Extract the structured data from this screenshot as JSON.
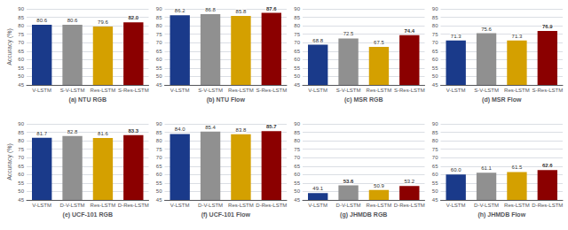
{
  "chart_data": [
    {
      "type": "bar",
      "title": "(a) NTU RGB",
      "ylabel": "Accuracy (%)",
      "categories": [
        "V-LSTM",
        "S-V-LSTM",
        "Res-LSTM",
        "S-Res-LSTM"
      ],
      "values": [
        80.6,
        80.6,
        79.6,
        82.0
      ],
      "value_labels": [
        "80.6",
        "80.6",
        "79.6",
        "82.0"
      ],
      "colors": [
        "#1a3a8a",
        "#909090",
        "#d4a000",
        "#8b0000"
      ],
      "ylim": [
        45,
        90
      ],
      "yticks": [
        45,
        50,
        55,
        60,
        65,
        70,
        75,
        80,
        85,
        90
      ],
      "grid": true,
      "data_labels": true
    },
    {
      "type": "bar",
      "title": "(b) NTU Flow",
      "categories": [
        "V-LSTM",
        "S-V-LSTM",
        "Res-LSTM",
        "S-Res-LSTM"
      ],
      "values": [
        86.2,
        86.8,
        85.8,
        87.6
      ],
      "value_labels": [
        "86.2",
        "86.8",
        "85.8",
        "87.6"
      ],
      "colors": [
        "#1a3a8a",
        "#909090",
        "#d4a000",
        "#8b0000"
      ],
      "ylim": [
        45,
        90
      ],
      "yticks": [
        45,
        50,
        55,
        60,
        65,
        70,
        75,
        80,
        85,
        90
      ],
      "grid": true,
      "data_labels": true
    },
    {
      "type": "bar",
      "title": "(c) MSR RGB",
      "categories": [
        "V-LSTM",
        "S-V-LSTM",
        "Res-LSTM",
        "S-Res-LSTM"
      ],
      "values": [
        68.8,
        72.5,
        67.5,
        74.4
      ],
      "value_labels": [
        "68.8",
        "72.5",
        "67.5",
        "74.4"
      ],
      "colors": [
        "#1a3a8a",
        "#909090",
        "#d4a000",
        "#8b0000"
      ],
      "ylim": [
        45,
        90
      ],
      "yticks": [
        45,
        50,
        55,
        60,
        65,
        70,
        75,
        80,
        85,
        90
      ],
      "grid": true,
      "data_labels": true
    },
    {
      "type": "bar",
      "title": "(d) MSR Flow",
      "categories": [
        "V-LSTM",
        "S-V-LSTM",
        "Res-LSTM",
        "S-Res-LSTM"
      ],
      "values": [
        71.3,
        75.6,
        71.3,
        76.9
      ],
      "value_labels": [
        "71.3",
        "75.6",
        "71.3",
        "76.9"
      ],
      "colors": [
        "#1a3a8a",
        "#909090",
        "#d4a000",
        "#8b0000"
      ],
      "ylim": [
        45,
        90
      ],
      "yticks": [
        45,
        50,
        55,
        60,
        65,
        70,
        75,
        80,
        85,
        90
      ],
      "grid": true,
      "data_labels": true
    },
    {
      "type": "bar",
      "title": "(e) UCF-101 RGB",
      "ylabel": "Accuracy (%)",
      "categories": [
        "V-LSTM",
        "D-V-LSTM",
        "Res-LSTM",
        "D-Res-LSTM"
      ],
      "values": [
        81.7,
        82.8,
        81.6,
        83.3
      ],
      "value_labels": [
        "81.7",
        "82.8",
        "81.6",
        "83.3"
      ],
      "colors": [
        "#1a3a8a",
        "#909090",
        "#d4a000",
        "#8b0000"
      ],
      "ylim": [
        45,
        90
      ],
      "yticks": [
        45,
        50,
        55,
        60,
        65,
        70,
        75,
        80,
        85,
        90
      ],
      "grid": true,
      "data_labels": true
    },
    {
      "type": "bar",
      "title": "(f) UCF-101 Flow",
      "categories": [
        "V-LSTM",
        "D-V-LSTM",
        "Res-LSTM",
        "D-Res-LSTM"
      ],
      "values": [
        84.0,
        85.4,
        83.8,
        85.7
      ],
      "value_labels": [
        "84.0",
        "85.4",
        "83.8",
        "85.7"
      ],
      "colors": [
        "#1a3a8a",
        "#909090",
        "#d4a000",
        "#8b0000"
      ],
      "ylim": [
        45,
        90
      ],
      "yticks": [
        45,
        50,
        55,
        60,
        65,
        70,
        75,
        80,
        85,
        90
      ],
      "grid": true,
      "data_labels": true
    },
    {
      "type": "bar",
      "title": "(g) JHMDB RGB",
      "categories": [
        "V-LSTM",
        "D-V-LSTM",
        "Res-LSTM",
        "D-Res-LSTM"
      ],
      "values": [
        49.1,
        53.6,
        50.9,
        53.2
      ],
      "value_labels": [
        "49.1",
        "53.6",
        "50.9",
        "53.2"
      ],
      "colors": [
        "#1a3a8a",
        "#909090",
        "#d4a000",
        "#8b0000"
      ],
      "ylim": [
        45,
        90
      ],
      "yticks": [
        45,
        50,
        55,
        60,
        65,
        70,
        75,
        80,
        85,
        90
      ],
      "grid": true,
      "data_labels": true
    },
    {
      "type": "bar",
      "title": "(h) JHMDB Flow",
      "categories": [
        "V-LSTM",
        "D-V-LSTM",
        "Res-LSTM",
        "D-Res-LSTM"
      ],
      "values": [
        60.0,
        61.1,
        61.5,
        62.6
      ],
      "value_labels": [
        "60.0",
        "61.1",
        "61.5",
        "62.6"
      ],
      "colors": [
        "#1a3a8a",
        "#909090",
        "#d4a000",
        "#8b0000"
      ],
      "ylim": [
        45,
        90
      ],
      "yticks": [
        45,
        50,
        55,
        60,
        65,
        70,
        75,
        80,
        85,
        90
      ],
      "grid": true,
      "data_labels": true
    }
  ]
}
